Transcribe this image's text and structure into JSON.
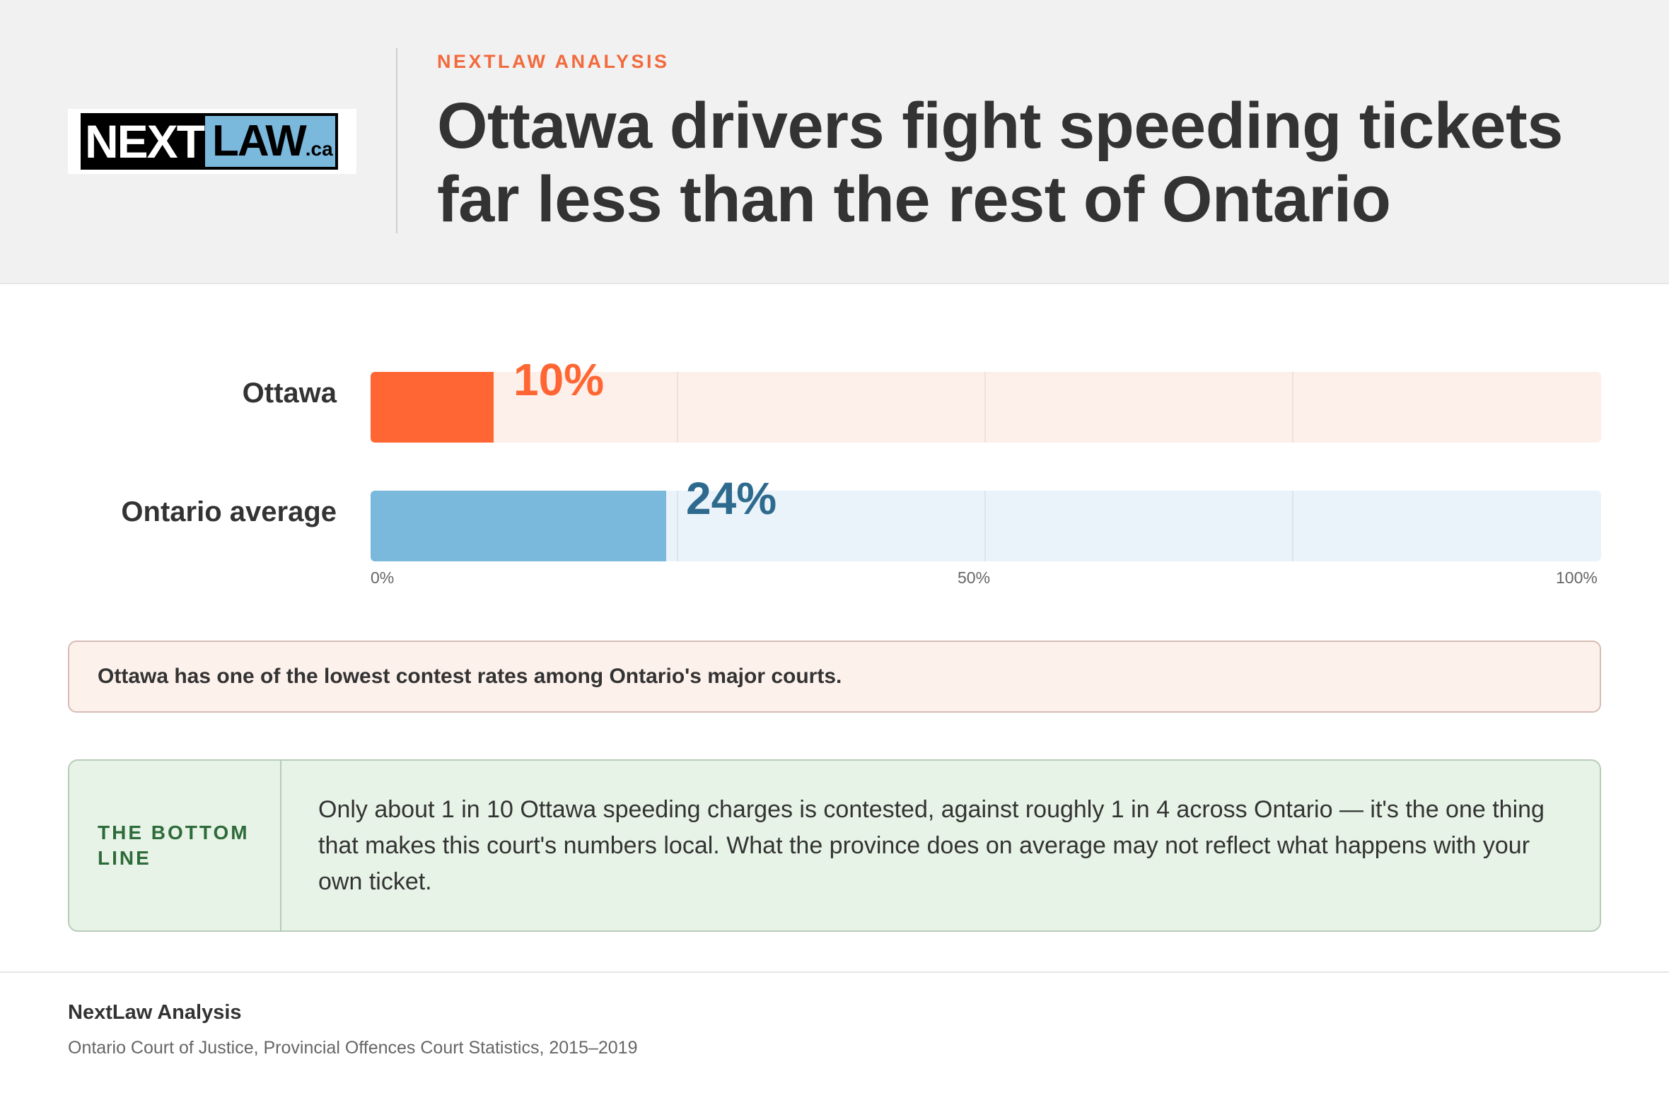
{
  "header": {
    "logo": {
      "text_next": "NEXT",
      "text_law": "LAW",
      "text_ca": ".ca"
    },
    "kicker": "NEXTLAW ANALYSIS",
    "title_line1": "Ottawa drivers fight speeding tickets",
    "title_line2": "far less than the rest of Ontario"
  },
  "chart_data": {
    "type": "bar",
    "orientation": "horizontal",
    "categories": [
      "Ottawa",
      "Ontario average"
    ],
    "values": [
      10,
      24
    ],
    "value_labels": [
      "10%",
      "24%"
    ],
    "xlim": [
      0,
      100
    ],
    "x_ticks": [
      "0%",
      "50%",
      "100%"
    ],
    "colors": [
      "#ff6633",
      "#7ab8dc"
    ],
    "track_colors": [
      "#fdf0ea",
      "#eaf3fa"
    ],
    "label_colors": [
      "#ff6633",
      "#2e6a8e"
    ]
  },
  "callout": {
    "text": "Ottawa has one of the lowest contest rates among Ontario's major courts."
  },
  "bottom_line": {
    "label": "THE BOTTOM LINE",
    "text": "Only about 1 in 10 Ottawa speeding charges is contested, against roughly 1 in 4 across Ontario — it's the one thing that makes this court's numbers local. What the province does on average may not reflect what happens with your own ticket."
  },
  "footer": {
    "source_title": "NextLaw Analysis",
    "source_text": "Ontario Court of Justice, Provincial Offences Court Statistics, 2015–2019"
  }
}
